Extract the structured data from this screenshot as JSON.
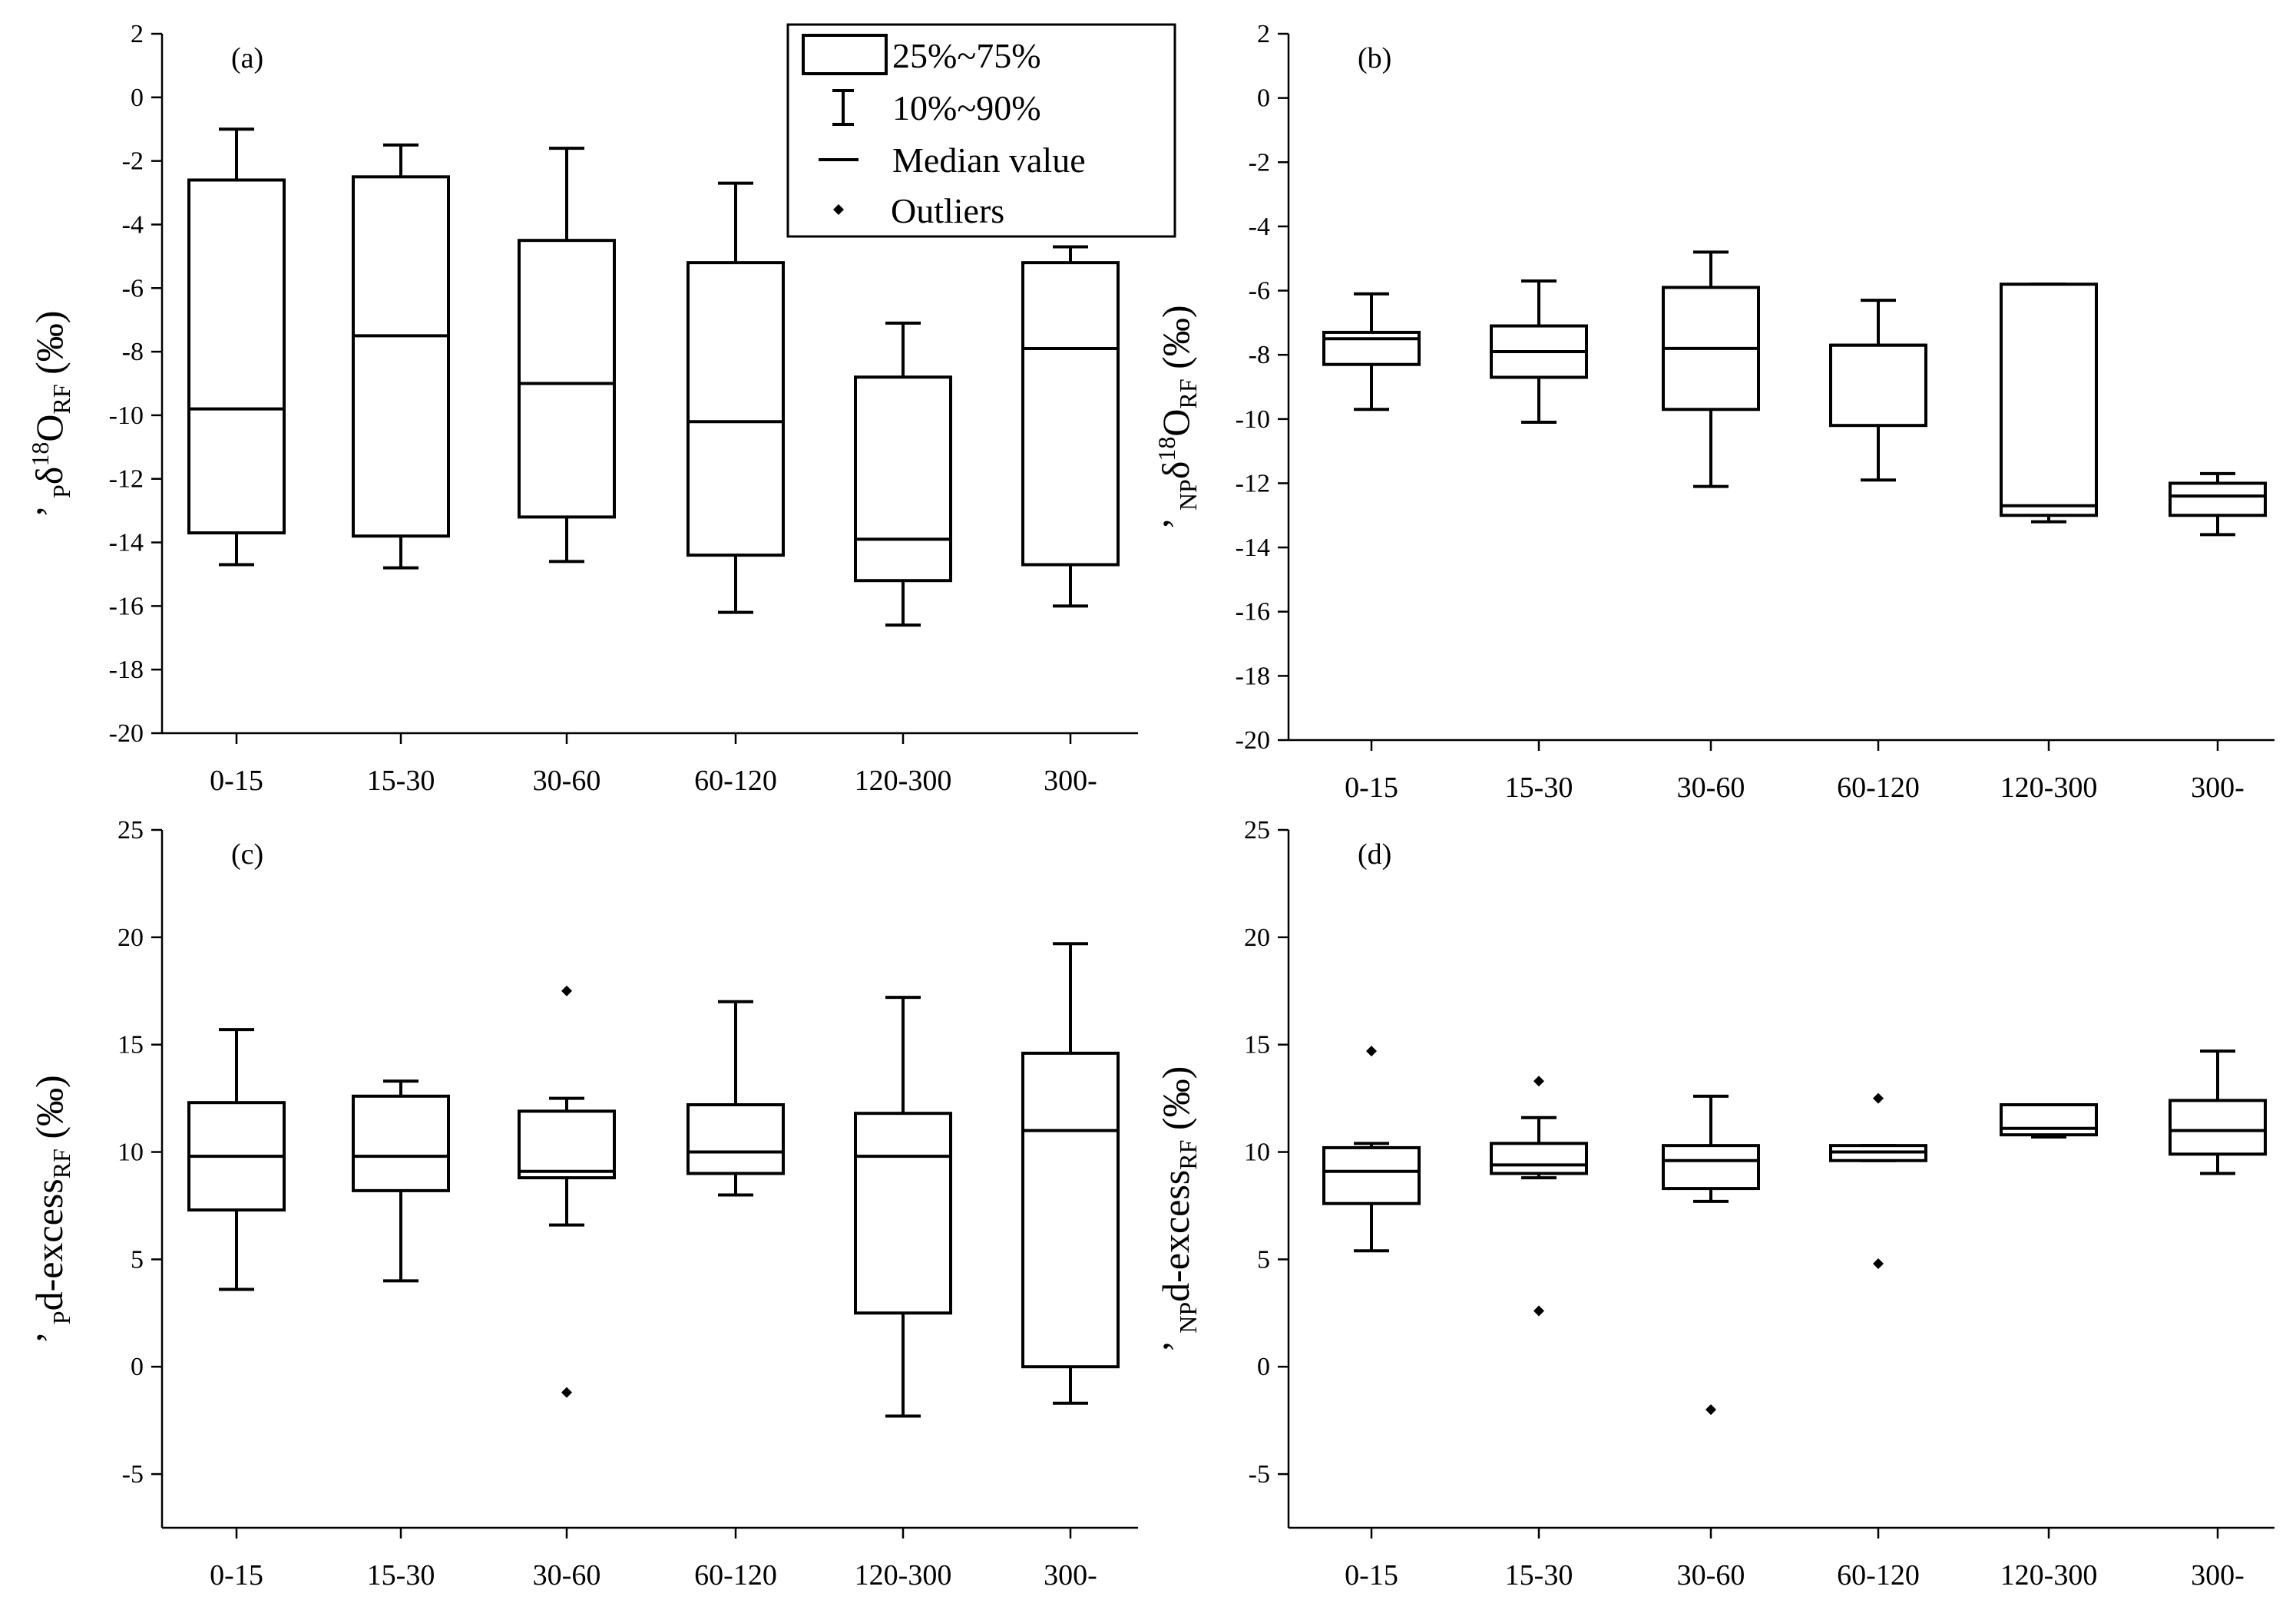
{
  "chart_data": [
    {
      "type": "box",
      "panel_label": "(a)",
      "ylabel": {
        "prefix": "’",
        "sub1": "P",
        "main": "δ",
        "sup": "18",
        "main2": "O",
        "sub2": "RF",
        "unit": " (‰)"
      },
      "categories": [
        "0-15",
        "15-30",
        "30-60",
        "60-120",
        "120-300",
        "300-"
      ],
      "ylim": [
        -20,
        2
      ],
      "yticks": [
        "2",
        "0",
        "-2",
        "-4",
        "-6",
        "-8",
        "-10",
        "-12",
        "-14",
        "-16",
        "-18",
        "-20"
      ],
      "boxes": [
        {
          "p10": -14.7,
          "q1": -13.7,
          "median": -9.8,
          "q3": -2.6,
          "p90": -1.0
        },
        {
          "p10": -14.8,
          "q1": -13.8,
          "median": -7.5,
          "q3": -2.5,
          "p90": -1.5
        },
        {
          "p10": -14.6,
          "q1": -13.2,
          "median": -9.0,
          "q3": -4.5,
          "p90": -1.6
        },
        {
          "p10": -16.2,
          "q1": -14.4,
          "median": -10.2,
          "q3": -5.2,
          "p90": -2.7
        },
        {
          "p10": -16.6,
          "q1": -15.2,
          "median": -13.9,
          "q3": -8.8,
          "p90": -7.1
        },
        {
          "p10": -16.0,
          "q1": -14.7,
          "median": -7.9,
          "q3": -5.2,
          "p90": -4.7
        }
      ],
      "outliers": []
    },
    {
      "type": "box",
      "panel_label": "(b)",
      "ylabel": {
        "prefix": "’",
        "sub1": "NP",
        "main": "δ",
        "sup": "18",
        "main2": "O",
        "sub2": "RF",
        "unit": " (‰)"
      },
      "categories": [
        "0-15",
        "15-30",
        "30-60",
        "60-120",
        "120-300",
        "300-"
      ],
      "ylim": [
        -20,
        2
      ],
      "yticks": [
        "2",
        "0",
        "-2",
        "-4",
        "-6",
        "-8",
        "-10",
        "-12",
        "-14",
        "-16",
        "-18",
        "-20"
      ],
      "boxes": [
        {
          "p10": -9.7,
          "q1": -8.3,
          "median": -7.5,
          "q3": -7.3,
          "p90": -6.1
        },
        {
          "p10": -10.1,
          "q1": -8.7,
          "median": -7.9,
          "q3": -7.1,
          "p90": -5.7
        },
        {
          "p10": -12.1,
          "q1": -9.7,
          "median": -7.8,
          "q3": -5.9,
          "p90": -4.8
        },
        {
          "p10": -11.9,
          "q1": -10.2,
          "median": -7.7,
          "q3": -7.7,
          "p90": -6.3
        },
        {
          "p10": -13.2,
          "q1": -13.0,
          "median": -12.7,
          "q3": -5.8,
          "p90": -5.8
        },
        {
          "p10": -13.6,
          "q1": -13.0,
          "median": -12.4,
          "q3": -12.0,
          "p90": -11.7
        }
      ],
      "outliers": []
    },
    {
      "type": "box",
      "panel_label": "(c)",
      "ylabel": {
        "prefix": "’",
        "sub1": "P",
        "main": "d-excess",
        "sup": "",
        "main2": "",
        "sub2": "RF",
        "unit": " (‰)"
      },
      "categories": [
        "0-15",
        "15-30",
        "30-60",
        "60-120",
        "120-300",
        "300-"
      ],
      "ylim": [
        -7.5,
        25
      ],
      "yticks": [
        "25",
        "20",
        "15",
        "10",
        "5",
        "0",
        "-5"
      ],
      "boxes": [
        {
          "p10": 3.6,
          "q1": 7.3,
          "median": 9.8,
          "q3": 12.3,
          "p90": 15.7
        },
        {
          "p10": 4.0,
          "q1": 8.2,
          "median": 9.8,
          "q3": 12.6,
          "p90": 13.3
        },
        {
          "p10": 6.6,
          "q1": 8.8,
          "median": 9.1,
          "q3": 11.9,
          "p90": 12.5
        },
        {
          "p10": 8.0,
          "q1": 9.0,
          "median": 10.0,
          "q3": 12.2,
          "p90": 17.0
        },
        {
          "p10": -2.3,
          "q1": 2.5,
          "median": 9.8,
          "q3": 11.8,
          "p90": 17.2
        },
        {
          "p10": -1.7,
          "q1": 0.0,
          "median": 11.0,
          "q3": 14.6,
          "p90": 19.7
        }
      ],
      "outliers": [
        {
          "category": "30-60",
          "values": [
            17.5,
            -1.2
          ]
        }
      ]
    },
    {
      "type": "box",
      "panel_label": "(d)",
      "ylabel": {
        "prefix": "’",
        "sub1": "NP",
        "main": "d-excess",
        "sup": "",
        "main2": "",
        "sub2": "RF",
        "unit": " (‰)"
      },
      "categories": [
        "0-15",
        "15-30",
        "30-60",
        "60-120",
        "120-300",
        "300-"
      ],
      "ylim": [
        -7.5,
        25
      ],
      "yticks": [
        "25",
        "20",
        "15",
        "10",
        "5",
        "0",
        "-5"
      ],
      "boxes": [
        {
          "p10": 5.4,
          "q1": 7.6,
          "median": 9.1,
          "q3": 10.2,
          "p90": 10.4
        },
        {
          "p10": 8.8,
          "q1": 9.0,
          "median": 9.4,
          "q3": 10.4,
          "p90": 11.6
        },
        {
          "p10": 7.7,
          "q1": 8.3,
          "median": 9.6,
          "q3": 10.3,
          "p90": 12.6
        },
        {
          "p10": 9.6,
          "q1": 9.6,
          "median": 10.0,
          "q3": 10.3,
          "p90": 10.3
        },
        {
          "p10": 10.7,
          "q1": 10.8,
          "median": 11.1,
          "q3": 12.2,
          "p90": 12.2
        },
        {
          "p10": 9.0,
          "q1": 9.9,
          "median": 11.0,
          "q3": 12.4,
          "p90": 14.7
        }
      ],
      "outliers": [
        {
          "category": "0-15",
          "values": [
            14.7
          ]
        },
        {
          "category": "15-30",
          "values": [
            13.3,
            2.6
          ]
        },
        {
          "category": "30-60",
          "values": [
            -2.0
          ]
        },
        {
          "category": "60-120",
          "values": [
            12.5,
            4.8
          ]
        }
      ]
    }
  ],
  "legend": {
    "box": "25%~75%",
    "whisker": "10%~90%",
    "median": "Median value",
    "outliers": "Outliers"
  }
}
